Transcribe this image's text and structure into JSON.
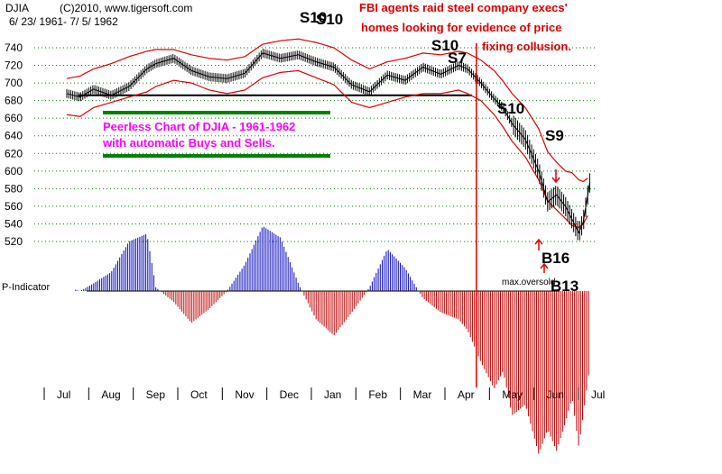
{
  "header": {
    "symbol": "DJIA",
    "copyright": "(C)2010, www.tigersoft.com",
    "date_range": "6/ 23/ 1961- 7/ 5/ 1962"
  },
  "news": {
    "line1": "FBI agents raid steel company execs'",
    "line2": "homes looking for evidence of price",
    "line3": "fixing collusion."
  },
  "info_box": {
    "line1": "Peerless Chart of DJIA - 1961-1962",
    "line2": "with automatic Buys and Sells."
  },
  "indicator_label": "P-Indicator",
  "colors": {
    "price": "#000000",
    "bands": "#e00000",
    "grid": "#008000",
    "indicator_positive": "#0000c0",
    "indicator_negative": "#c00000",
    "signal": "#e00000",
    "box_text": "#ff00ff",
    "support_line": "#000000"
  },
  "chart_data": {
    "type": "line",
    "title": "DJIA 6/23/1961 - 7/5/1962",
    "ylim": [
      520,
      740
    ],
    "yticks": [
      740,
      720,
      700,
      680,
      660,
      640,
      620,
      600,
      580,
      560,
      540,
      520
    ],
    "x_months": [
      "Jul",
      "Aug",
      "Sep",
      "Oct",
      "Nov",
      "Dec",
      "Jan",
      "Feb",
      "Mar",
      "Apr",
      "May",
      "Jun",
      "Jul"
    ],
    "x": [
      0,
      0.3,
      0.6,
      1.0,
      1.4,
      1.8,
      2.0,
      2.4,
      2.8,
      3.2,
      3.6,
      4.0,
      4.4,
      4.8,
      5.2,
      5.6,
      6.0,
      6.4,
      6.8,
      7.2,
      7.6,
      8.0,
      8.4,
      8.8,
      9.0,
      9.3,
      9.6,
      9.8,
      10.0,
      10.3,
      10.6,
      10.8,
      11.0,
      11.2,
      11.35,
      11.5,
      11.6,
      11.75
    ],
    "series": [
      {
        "name": "DJIA close",
        "values": [
          688,
          684,
          693,
          686,
          696,
          716,
          722,
          728,
          714,
          707,
          705,
          711,
          734,
          728,
          732,
          724,
          718,
          698,
          690,
          709,
          703,
          718,
          710,
          720,
          716,
          700,
          682,
          672,
          654,
          636,
          600,
          565,
          573,
          560,
          545,
          530,
          542,
          588
        ]
      },
      {
        "name": "Upper band",
        "values": [
          705,
          708,
          716,
          722,
          730,
          736,
          738,
          738,
          732,
          728,
          726,
          730,
          744,
          748,
          750,
          746,
          740,
          726,
          716,
          724,
          728,
          734,
          732,
          736,
          734,
          726,
          714,
          702,
          688,
          672,
          648,
          622,
          610,
          600,
          598,
          590,
          588,
          594
        ]
      },
      {
        "name": "Lower band",
        "values": [
          664,
          662,
          672,
          678,
          684,
          690,
          696,
          703,
          700,
          692,
          688,
          692,
          706,
          712,
          714,
          706,
          698,
          678,
          672,
          678,
          684,
          688,
          688,
          692,
          688,
          680,
          664,
          650,
          634,
          616,
          590,
          566,
          556,
          546,
          538,
          536,
          540,
          554
        ]
      }
    ],
    "indicator": {
      "name": "P-Indicator",
      "ylim": [
        -100,
        25
      ],
      "values": [
        2,
        0,
        4,
        10,
        26,
        30,
        2,
        -6,
        -18,
        -10,
        0,
        14,
        34,
        28,
        4,
        -16,
        -25,
        -12,
        2,
        22,
        12,
        -4,
        -12,
        -16,
        -22,
        -40,
        -55,
        -45,
        -70,
        -64,
        -92,
        -78,
        -90,
        -74,
        -60,
        -88,
        -70,
        -42
      ]
    },
    "support_line": {
      "value": 686,
      "label": ""
    },
    "vertical_marker": {
      "x": 9.2
    },
    "signals": [
      {
        "label": "S10",
        "x": 5.55,
        "y": 740
      },
      {
        "label": "S10",
        "x": 5.75,
        "y": 738
      },
      {
        "label": "S10",
        "x": 9.05,
        "y": 732
      },
      {
        "label": "S7",
        "x": 9.25,
        "y": 726
      },
      {
        "label": "S10",
        "x": 11.35,
        "y": 668
      },
      {
        "label": "S9",
        "x": 11.55,
        "y": 624
      },
      {
        "label": "B16",
        "x": 11.5,
        "y": 518
      },
      {
        "label": "B13",
        "x": 11.5,
        "y": 502
      }
    ],
    "annotations": [
      "max.oversold"
    ]
  }
}
